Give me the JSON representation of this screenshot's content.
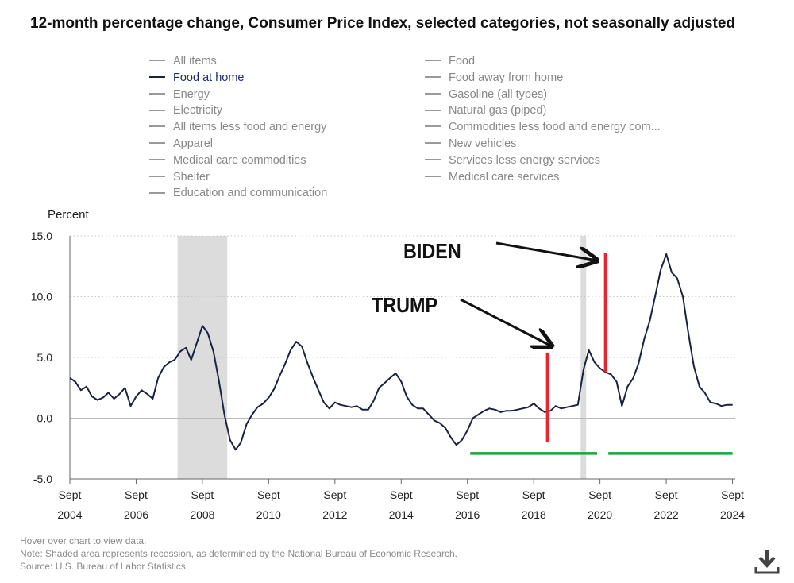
{
  "title": "12-month percentage change, Consumer Price Index, selected categories, not seasonally adjusted",
  "legend": {
    "left": [
      {
        "label": "All items",
        "active": false
      },
      {
        "label": "Food at home",
        "active": true
      },
      {
        "label": "Energy",
        "active": false
      },
      {
        "label": "Electricity",
        "active": false
      },
      {
        "label": "All items less food and energy",
        "active": false
      },
      {
        "label": "Apparel",
        "active": false
      },
      {
        "label": "Medical care commodities",
        "active": false
      },
      {
        "label": "Shelter",
        "active": false
      },
      {
        "label": "Education and communication",
        "active": false
      }
    ],
    "right": [
      {
        "label": "Food",
        "active": false
      },
      {
        "label": "Food away from home",
        "active": false
      },
      {
        "label": "Gasoline (all types)",
        "active": false
      },
      {
        "label": "Natural gas (piped)",
        "active": false
      },
      {
        "label": "Commodities less food and energy com...",
        "active": false
      },
      {
        "label": "New vehicles",
        "active": false
      },
      {
        "label": "Services less energy services",
        "active": false
      },
      {
        "label": "Medical care services",
        "active": false
      }
    ]
  },
  "notes": {
    "hover": "Hover over chart to view data.",
    "note": "Note: Shaded area represents recession, as determined by the National Bureau of Economic Research.",
    "source": "Source: U.S. Bureau of Labor Statistics."
  },
  "chart_data": {
    "type": "line",
    "ylabel": "Percent",
    "ylim": [
      -5,
      15
    ],
    "xlim": [
      2004.667,
      2024.75
    ],
    "yticks": [
      {
        "value": 15,
        "label": "15.0"
      },
      {
        "value": 10,
        "label": "10.0"
      },
      {
        "value": 5,
        "label": "5.0"
      },
      {
        "value": 0,
        "label": "0.0"
      },
      {
        "value": -5,
        "label": "-5.0"
      }
    ],
    "xticks": [
      {
        "value": 2004.667,
        "month": "Sept",
        "year": "2004"
      },
      {
        "value": 2006.667,
        "month": "Sept",
        "year": "2006"
      },
      {
        "value": 2008.667,
        "month": "Sept",
        "year": "2008"
      },
      {
        "value": 2010.667,
        "month": "Sept",
        "year": "2010"
      },
      {
        "value": 2012.667,
        "month": "Sept",
        "year": "2012"
      },
      {
        "value": 2014.667,
        "month": "Sept",
        "year": "2014"
      },
      {
        "value": 2016.667,
        "month": "Sept",
        "year": "2016"
      },
      {
        "value": 2018.667,
        "month": "Sept",
        "year": "2018"
      },
      {
        "value": 2020.667,
        "month": "Sept",
        "year": "2020"
      },
      {
        "value": 2022.667,
        "month": "Sept",
        "year": "2022"
      },
      {
        "value": 2024.667,
        "month": "Sept",
        "year": "2024"
      }
    ],
    "grid": true,
    "line_color": "#1b2240",
    "recessions": [
      {
        "start": 2007.917,
        "end": 2009.417
      },
      {
        "start": 2020.083,
        "end": 2020.25
      }
    ],
    "series": [
      {
        "name": "Food at home",
        "x": [
          2004.67,
          2004.83,
          2005.0,
          2005.17,
          2005.33,
          2005.5,
          2005.67,
          2005.83,
          2006.0,
          2006.17,
          2006.33,
          2006.5,
          2006.67,
          2006.83,
          2007.0,
          2007.17,
          2007.33,
          2007.5,
          2007.67,
          2007.83,
          2008.0,
          2008.17,
          2008.33,
          2008.5,
          2008.67,
          2008.83,
          2009.0,
          2009.17,
          2009.33,
          2009.5,
          2009.67,
          2009.83,
          2010.0,
          2010.17,
          2010.33,
          2010.5,
          2010.67,
          2010.83,
          2011.0,
          2011.17,
          2011.33,
          2011.5,
          2011.67,
          2011.83,
          2012.0,
          2012.17,
          2012.33,
          2012.5,
          2012.67,
          2012.83,
          2013.0,
          2013.17,
          2013.33,
          2013.5,
          2013.67,
          2013.83,
          2014.0,
          2014.17,
          2014.33,
          2014.5,
          2014.67,
          2014.83,
          2015.0,
          2015.17,
          2015.33,
          2015.5,
          2015.67,
          2015.83,
          2016.0,
          2016.17,
          2016.33,
          2016.5,
          2016.67,
          2016.83,
          2017.0,
          2017.17,
          2017.33,
          2017.5,
          2017.67,
          2017.83,
          2018.0,
          2018.17,
          2018.33,
          2018.5,
          2018.67,
          2018.83,
          2019.0,
          2019.17,
          2019.33,
          2019.5,
          2019.67,
          2019.83,
          2020.0,
          2020.17,
          2020.33,
          2020.5,
          2020.67,
          2020.83,
          2021.0,
          2021.17,
          2021.33,
          2021.5,
          2021.67,
          2021.83,
          2022.0,
          2022.17,
          2022.33,
          2022.5,
          2022.67,
          2022.83,
          2023.0,
          2023.17,
          2023.33,
          2023.5,
          2023.67,
          2023.83,
          2024.0,
          2024.17,
          2024.33,
          2024.5,
          2024.67
        ],
        "values": [
          3.3,
          3.0,
          2.3,
          2.6,
          1.8,
          1.5,
          1.7,
          2.1,
          1.6,
          2.0,
          2.5,
          1.0,
          1.8,
          2.3,
          2.0,
          1.6,
          3.3,
          4.2,
          4.6,
          4.8,
          5.5,
          5.8,
          4.8,
          6.2,
          7.6,
          7.0,
          5.5,
          3.0,
          0.3,
          -1.8,
          -2.6,
          -2.0,
          -0.5,
          0.3,
          0.9,
          1.2,
          1.7,
          2.4,
          3.5,
          4.5,
          5.6,
          6.3,
          5.9,
          4.6,
          3.4,
          2.3,
          1.3,
          0.8,
          1.3,
          1.1,
          1.0,
          0.9,
          1.0,
          0.7,
          0.7,
          1.4,
          2.5,
          2.9,
          3.3,
          3.7,
          3.0,
          1.8,
          1.1,
          0.8,
          0.8,
          0.3,
          -0.2,
          -0.4,
          -0.8,
          -1.6,
          -2.2,
          -1.8,
          -1.0,
          0.0,
          0.3,
          0.6,
          0.8,
          0.7,
          0.5,
          0.6,
          0.6,
          0.7,
          0.8,
          0.9,
          1.2,
          0.8,
          0.5,
          0.6,
          1.0,
          0.8,
          0.9,
          1.0,
          1.1,
          4.0,
          5.6,
          4.6,
          4.1,
          3.8,
          3.6,
          3.0,
          1.0,
          2.6,
          3.3,
          4.5,
          6.5,
          8.0,
          10.0,
          12.2,
          13.5,
          12.0,
          11.5,
          10.0,
          7.1,
          4.3,
          2.6,
          2.1,
          1.3,
          1.2,
          1.0,
          1.1,
          1.1
        ]
      }
    ],
    "annotations": [
      {
        "text": "BIDEN",
        "kind": "label"
      },
      {
        "text": "TRUMP",
        "kind": "label"
      }
    ],
    "annotation_lines": [
      {
        "color": "#e8242c",
        "x": 2019.08,
        "y0": -2.0,
        "y1": 5.4
      },
      {
        "color": "#e8242c",
        "x": 2020.83,
        "y0": 3.8,
        "y1": 13.6
      },
      {
        "color": "#1aa638",
        "x0": 2016.75,
        "x1": 2020.58,
        "y": -2.9
      },
      {
        "color": "#1aa638",
        "x0": 2020.92,
        "x1": 2024.67,
        "y": -2.9
      }
    ]
  }
}
